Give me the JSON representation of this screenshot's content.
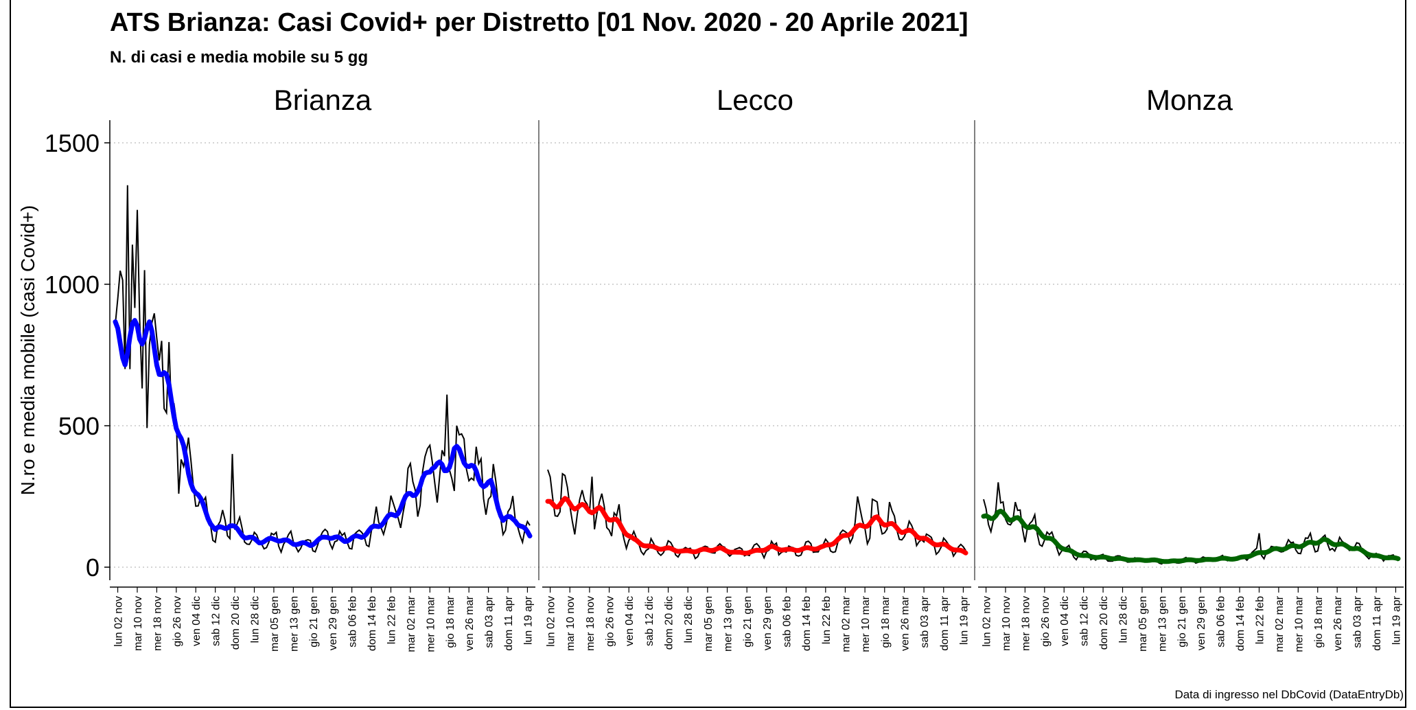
{
  "title": "ATS Brianza: Casi Covid+ per Distretto [01 Nov. 2020 - 20 Aprile 2021]",
  "subtitle": "N. di casi e media mobile su 5 gg",
  "footer": "Data di ingresso nel DbCovid (DataEntryDb)",
  "colors": {
    "Brianza": "#0000ff",
    "Lecco": "#ff0000",
    "Monza": "#006400",
    "daily": "#000000",
    "grid": "#bbbbbb"
  },
  "chart_data": {
    "type": "line",
    "ylabel": "N.ro e media mobile (casi Covid+)",
    "ylim": [
      0,
      1500
    ],
    "yticks": [
      0,
      500,
      1000,
      1500
    ],
    "grid": "horizontal dotted",
    "x_range": [
      "2020-11-01",
      "2021-04-20"
    ],
    "x_tick_labels": [
      "lun 02 nov",
      "mar 10 nov",
      "mer 18 nov",
      "gio 26 nov",
      "ven 04 dic",
      "sab 12 dic",
      "dom 20 dic",
      "lun 28 dic",
      "mar 05 gen",
      "mer 13 gen",
      "gio 21 gen",
      "ven 29 gen",
      "sab 06 feb",
      "dom 14 feb",
      "lun 22 feb",
      "mar 02 mar",
      "mer 10 mar",
      "gio 18 mar",
      "ven 26 mar",
      "sab 03 apr",
      "dom 11 apr",
      "lun 19 apr"
    ],
    "x_tick_dates": [
      "2020-11-02",
      "2020-11-10",
      "2020-11-18",
      "2020-11-26",
      "2020-12-04",
      "2020-12-12",
      "2020-12-20",
      "2020-12-28",
      "2021-01-05",
      "2021-01-13",
      "2021-01-21",
      "2021-01-29",
      "2021-02-06",
      "2021-02-14",
      "2021-02-22",
      "2021-03-02",
      "2021-03-10",
      "2021-03-18",
      "2021-03-26",
      "2021-04-03",
      "2021-04-11",
      "2021-04-19"
    ],
    "panels": [
      {
        "name": "Brianza",
        "moving_average": {
          "x": [
            "2020-11-01",
            "2020-11-05",
            "2020-11-10",
            "2020-11-15",
            "2020-11-20",
            "2020-11-25",
            "2020-12-01",
            "2020-12-06",
            "2020-12-12",
            "2020-12-18",
            "2020-12-24",
            "2020-12-30",
            "2021-01-06",
            "2021-01-13",
            "2021-01-20",
            "2021-01-27",
            "2021-02-03",
            "2021-02-10",
            "2021-02-17",
            "2021-02-24",
            "2021-03-02",
            "2021-03-06",
            "2021-03-11",
            "2021-03-16",
            "2021-03-20",
            "2021-03-25",
            "2021-03-30",
            "2021-04-04",
            "2021-04-09",
            "2021-04-14",
            "2021-04-20"
          ],
          "y": [
            820,
            760,
            850,
            820,
            700,
            560,
            330,
            230,
            130,
            150,
            110,
            90,
            100,
            85,
            80,
            110,
            95,
            110,
            150,
            190,
            260,
            280,
            370,
            340,
            410,
            380,
            310,
            290,
            170,
            170,
            110
          ]
        },
        "daily_peaks": {
          "x": [
            "2020-11-01",
            "2020-11-06",
            "2020-11-08",
            "2020-11-13",
            "2020-11-18",
            "2020-11-20",
            "2020-11-24",
            "2020-12-19",
            "2021-03-17",
            "2021-03-21"
          ],
          "y": [
            860,
            1350,
            1140,
            1050,
            810,
            800,
            550,
            400,
            610,
            500
          ]
        }
      },
      {
        "name": "Lecco",
        "moving_average": {
          "x": [
            "2020-11-01",
            "2020-11-08",
            "2020-11-15",
            "2020-11-22",
            "2020-11-29",
            "2020-12-06",
            "2020-12-13",
            "2020-12-20",
            "2020-12-27",
            "2021-01-03",
            "2021-01-10",
            "2021-01-17",
            "2021-01-24",
            "2021-01-31",
            "2021-02-07",
            "2021-02-14",
            "2021-02-21",
            "2021-02-28",
            "2021-03-05",
            "2021-03-10",
            "2021-03-15",
            "2021-03-20",
            "2021-03-25",
            "2021-03-30",
            "2021-04-05",
            "2021-04-12",
            "2021-04-20"
          ],
          "y": [
            220,
            230,
            210,
            200,
            160,
            95,
            70,
            65,
            55,
            60,
            65,
            50,
            55,
            70,
            60,
            65,
            70,
            100,
            130,
            150,
            170,
            150,
            130,
            120,
            90,
            75,
            50
          ]
        },
        "daily_peaks": {
          "x": [
            "2020-11-01",
            "2020-11-07",
            "2020-11-19",
            "2021-03-07",
            "2021-03-13",
            "2021-03-20"
          ],
          "y": [
            345,
            330,
            320,
            250,
            240,
            230
          ]
        }
      },
      {
        "name": "Monza",
        "moving_average": {
          "x": [
            "2020-11-01",
            "2020-11-07",
            "2020-11-14",
            "2020-11-21",
            "2020-11-28",
            "2020-12-05",
            "2020-12-12",
            "2020-12-19",
            "2020-12-26",
            "2021-01-02",
            "2021-01-09",
            "2021-01-16",
            "2021-01-23",
            "2021-01-30",
            "2021-02-06",
            "2021-02-13",
            "2021-02-20",
            "2021-02-27",
            "2021-03-06",
            "2021-03-13",
            "2021-03-20",
            "2021-03-27",
            "2021-04-03",
            "2021-04-10",
            "2021-04-20"
          ],
          "y": [
            170,
            190,
            170,
            140,
            100,
            60,
            40,
            35,
            30,
            25,
            25,
            20,
            25,
            25,
            30,
            30,
            45,
            60,
            70,
            80,
            95,
            80,
            65,
            40,
            30
          ]
        },
        "daily_peaks": {
          "x": [
            "2020-11-01",
            "2020-11-07",
            "2020-11-14",
            "2021-02-22",
            "2021-03-15"
          ],
          "y": [
            240,
            300,
            230,
            120,
            120
          ]
        }
      }
    ]
  }
}
